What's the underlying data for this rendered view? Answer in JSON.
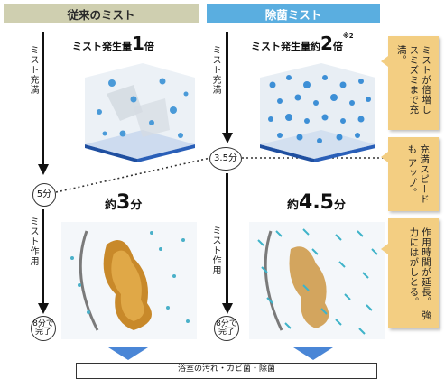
{
  "headers": {
    "left": "従来のミスト",
    "right": "除菌ミスト"
  },
  "left_axis": {
    "fill_label": "ミスト充満",
    "action_label": "ミスト作用"
  },
  "right_axis": {
    "fill_label": "ミスト充満",
    "action_label": "ミスト作用"
  },
  "left_col": {
    "amount_prefix": "ミスト発生量",
    "amount_value": "1",
    "amount_unit": "倍",
    "time_prefix": "約",
    "time_value": "3",
    "time_unit": "分"
  },
  "right_col": {
    "amount_prefix": "ミスト発生量約",
    "amount_value": "2",
    "amount_unit": "倍",
    "amount_note": "※2",
    "time_prefix": "約",
    "time_value": "4.5",
    "time_unit": "分"
  },
  "markers": {
    "left_fill_time": "5分",
    "left_done": "8分で\n完了",
    "right_fill_time": "3.5分",
    "right_done": "8分で\n完了"
  },
  "notes": [
    "ミストが倍増し\nスミズミまで充満。",
    "充満スピードも\nアップ。",
    "作用時間が延長。\n強力にはがしとる。"
  ],
  "caption": "浴室の汚れ・カビ菌・除菌",
  "colors": {
    "left_header": "#cfcfb0",
    "right_header": "#5aaee0",
    "note_bg": "#f3ce82",
    "arrow_blue": "#4a86d6"
  }
}
